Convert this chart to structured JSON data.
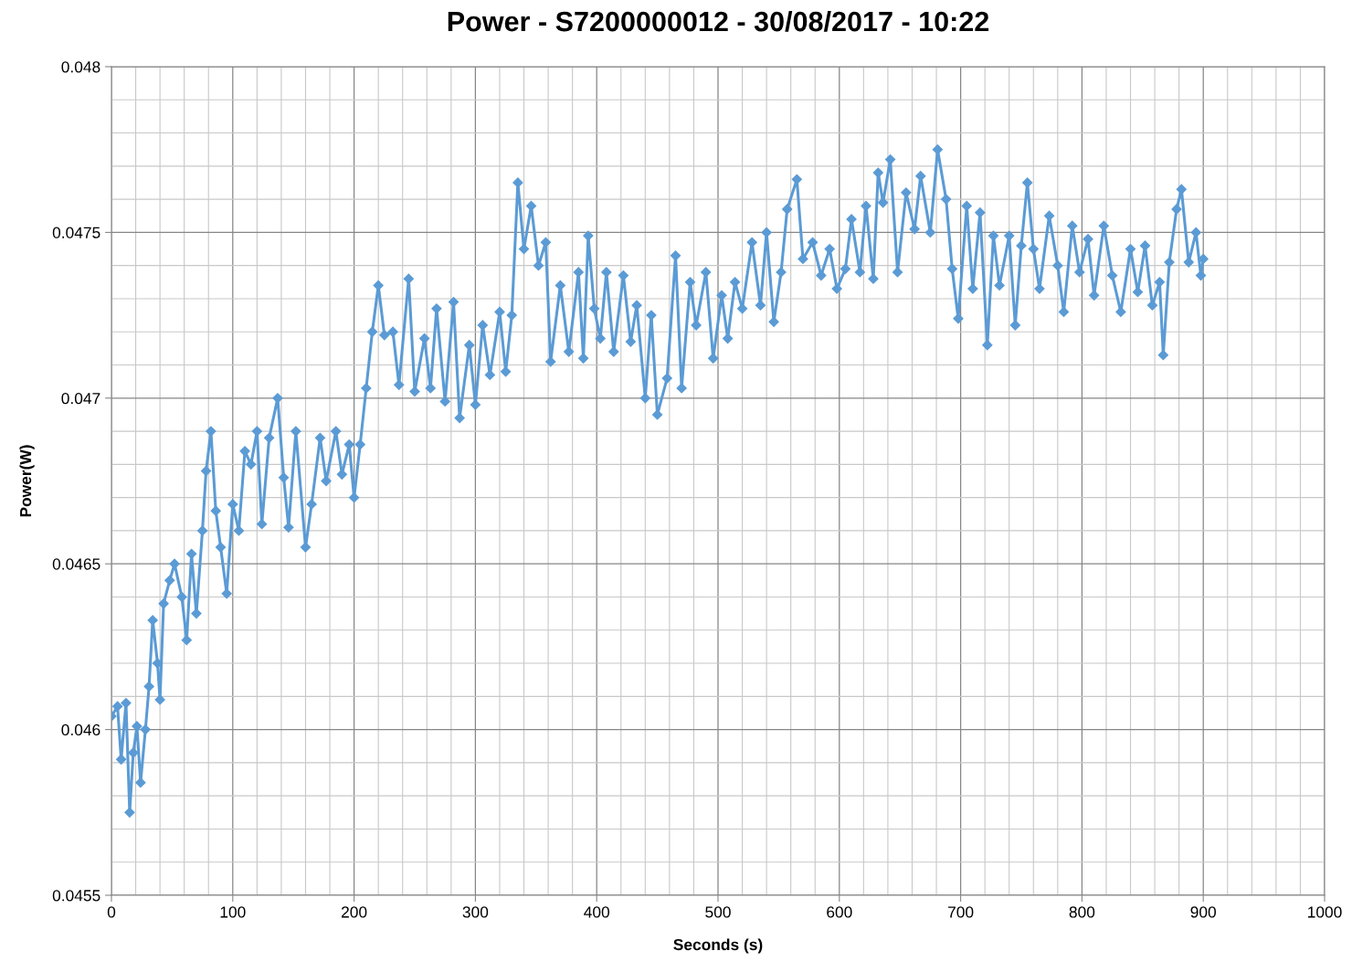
{
  "chart_data": {
    "type": "line",
    "title": "Power - S7200000012 - 30/08/2017 - 10:22",
    "xlabel": "Seconds (s)",
    "ylabel": "Power(W)",
    "xlim": [
      0,
      1000
    ],
    "xticks": [
      0,
      100,
      200,
      300,
      400,
      500,
      600,
      700,
      800,
      900,
      1000
    ],
    "ylim": [
      0.0455,
      0.048
    ],
    "yticks": [
      0.0455,
      0.046,
      0.0465,
      0.047,
      0.0475,
      0.048
    ],
    "grid": true,
    "marker": "diamond",
    "line_style": "solid",
    "legend": false,
    "x": [
      0,
      5,
      8,
      12,
      15,
      18,
      21,
      24,
      28,
      31,
      34,
      38,
      40,
      43,
      48,
      52,
      58,
      62,
      66,
      70,
      75,
      78,
      82,
      86,
      90,
      95,
      100,
      105,
      110,
      115,
      120,
      124,
      130,
      137,
      142,
      146,
      152,
      160,
      165,
      172,
      177,
      185,
      190,
      196,
      200,
      205,
      210,
      215,
      220,
      225,
      232,
      237,
      245,
      250,
      258,
      263,
      268,
      275,
      282,
      287,
      295,
      300,
      306,
      312,
      320,
      325,
      330,
      335,
      340,
      346,
      352,
      358,
      362,
      370,
      377,
      385,
      389,
      393,
      398,
      403,
      408,
      414,
      422,
      428,
      433,
      440,
      445,
      450,
      458,
      465,
      470,
      477,
      482,
      490,
      496,
      503,
      508,
      514,
      520,
      528,
      535,
      540,
      546,
      552,
      557,
      565,
      570,
      578,
      585,
      592,
      598,
      605,
      610,
      617,
      622,
      628,
      632,
      636,
      642,
      648,
      655,
      662,
      667,
      675,
      681,
      688,
      693,
      698,
      705,
      710,
      716,
      722,
      727,
      732,
      740,
      745,
      750,
      755,
      760,
      765,
      773,
      780,
      785,
      792,
      798,
      805,
      810,
      818,
      825,
      832,
      840,
      846,
      852,
      858,
      864,
      867,
      872,
      878,
      882,
      888,
      894,
      898,
      900
    ],
    "series": [
      {
        "color": "#5b9bd5",
        "values": [
          0.04604,
          0.04607,
          0.04591,
          0.04608,
          0.04575,
          0.04593,
          0.04601,
          0.04584,
          0.046,
          0.04613,
          0.04633,
          0.0462,
          0.04609,
          0.04638,
          0.04645,
          0.0465,
          0.0464,
          0.04627,
          0.04653,
          0.04635,
          0.0466,
          0.04678,
          0.0469,
          0.04666,
          0.04655,
          0.04641,
          0.04668,
          0.0466,
          0.04684,
          0.0468,
          0.0469,
          0.04662,
          0.04688,
          0.047,
          0.04676,
          0.04661,
          0.0469,
          0.04655,
          0.04668,
          0.04688,
          0.04675,
          0.0469,
          0.04677,
          0.04686,
          0.0467,
          0.04686,
          0.04703,
          0.0472,
          0.04734,
          0.04719,
          0.0472,
          0.04704,
          0.04736,
          0.04702,
          0.04718,
          0.04703,
          0.04727,
          0.04699,
          0.04729,
          0.04694,
          0.04716,
          0.04698,
          0.04722,
          0.04707,
          0.04726,
          0.04708,
          0.04725,
          0.04765,
          0.04745,
          0.04758,
          0.0474,
          0.04747,
          0.04711,
          0.04734,
          0.04714,
          0.04738,
          0.04712,
          0.04749,
          0.04727,
          0.04718,
          0.04738,
          0.04714,
          0.04737,
          0.04717,
          0.04728,
          0.047,
          0.04725,
          0.04695,
          0.04706,
          0.04743,
          0.04703,
          0.04735,
          0.04722,
          0.04738,
          0.04712,
          0.04731,
          0.04718,
          0.04735,
          0.04727,
          0.04747,
          0.04728,
          0.0475,
          0.04723,
          0.04738,
          0.04757,
          0.04766,
          0.04742,
          0.04747,
          0.04737,
          0.04745,
          0.04733,
          0.04739,
          0.04754,
          0.04738,
          0.04758,
          0.04736,
          0.04768,
          0.04759,
          0.04772,
          0.04738,
          0.04762,
          0.04751,
          0.04767,
          0.0475,
          0.04775,
          0.0476,
          0.04739,
          0.04724,
          0.04758,
          0.04733,
          0.04756,
          0.04716,
          0.04749,
          0.04734,
          0.04749,
          0.04722,
          0.04746,
          0.04765,
          0.04745,
          0.04733,
          0.04755,
          0.0474,
          0.04726,
          0.04752,
          0.04738,
          0.04748,
          0.04731,
          0.04752,
          0.04737,
          0.04726,
          0.04745,
          0.04732,
          0.04746,
          0.04728,
          0.04735,
          0.04713,
          0.04741,
          0.04757,
          0.04763,
          0.04741,
          0.0475,
          0.04737,
          0.04742
        ]
      }
    ]
  }
}
